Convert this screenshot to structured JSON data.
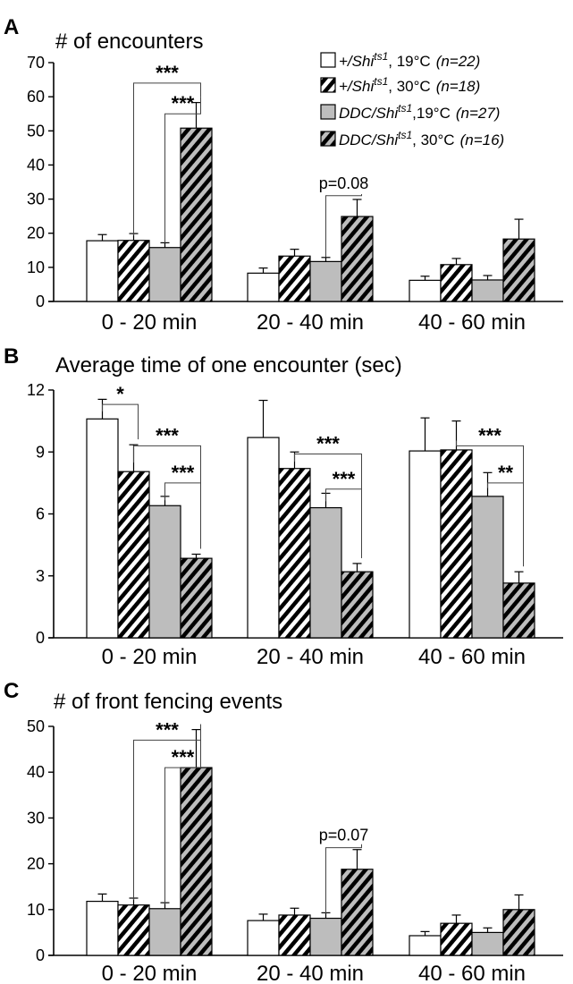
{
  "colors": {
    "white": "#ffffff",
    "gray": "#bdbdbd",
    "stroke": "#000000"
  },
  "legend": [
    {
      "genotype": "+/Shi",
      "superscript": "ts1",
      "temp": ", 19°C",
      "n": "(n=22)",
      "style": "white"
    },
    {
      "genotype": "+/Shi",
      "superscript": "ts1",
      "temp": ", 30°C",
      "n": "(n=18)",
      "style": "white-hatched"
    },
    {
      "genotype": "DDC/Shi",
      "superscript": "ts1",
      "temp": ",19°C",
      "n": "(n=27)",
      "style": "gray"
    },
    {
      "genotype": "DDC/Shi",
      "superscript": "ts1",
      "temp": ", 30°C",
      "n": "(n=16)",
      "style": "gray-hatched"
    }
  ],
  "chart_data": [
    {
      "type": "bar",
      "panel": "A",
      "title": "# of encounters",
      "categories": [
        "0 - 20 min",
        "20 - 40 min",
        "40 - 60 min"
      ],
      "ylim": [
        0,
        70
      ],
      "yticks": [
        0,
        10,
        20,
        30,
        40,
        50,
        60,
        70
      ],
      "series": [
        {
          "values": [
            17.8,
            8.3,
            6.2
          ],
          "errors": [
            1.8,
            1.5,
            1.2
          ]
        },
        {
          "values": [
            17.9,
            13.3,
            10.8
          ],
          "errors": [
            2.0,
            2.0,
            1.8
          ]
        },
        {
          "values": [
            15.8,
            11.7,
            6.3
          ],
          "errors": [
            1.4,
            1.2,
            1.3
          ]
        },
        {
          "values": [
            50.8,
            24.9,
            18.3
          ],
          "errors": [
            7.5,
            5.0,
            5.8
          ]
        }
      ],
      "annotations": [
        {
          "label": "***",
          "cat": 0,
          "from": 1,
          "to": 3,
          "y": 64
        },
        {
          "label": "***",
          "cat": 0,
          "from": 2,
          "to": 3,
          "y": 55
        },
        {
          "label": "p=0.08",
          "cat": 1,
          "from": 2,
          "to": 3,
          "y": 31
        }
      ]
    },
    {
      "type": "bar",
      "panel": "B",
      "title": "Average time of one encounter (sec)",
      "categories": [
        "0 - 20 min",
        "20 - 40 min",
        "40 - 60 min"
      ],
      "ylim": [
        0,
        12
      ],
      "yticks": [
        0,
        3,
        6,
        9,
        12
      ],
      "series": [
        {
          "values": [
            10.6,
            9.7,
            9.05
          ],
          "errors": [
            0.95,
            1.8,
            1.6
          ]
        },
        {
          "values": [
            8.05,
            8.2,
            9.1
          ],
          "errors": [
            1.3,
            0.8,
            1.4
          ]
        },
        {
          "values": [
            6.4,
            6.3,
            6.85
          ],
          "errors": [
            0.45,
            0.7,
            1.15
          ]
        },
        {
          "values": [
            3.85,
            3.2,
            2.65
          ],
          "errors": [
            0.2,
            0.4,
            0.55
          ]
        }
      ],
      "annotations": [
        {
          "label": "*",
          "cat": 0,
          "from": 0,
          "to": 1,
          "y": 11.3
        },
        {
          "label": "***",
          "cat": 0,
          "from": 1,
          "to": 3,
          "y": 9.3
        },
        {
          "label": "***",
          "cat": 0,
          "from": 2,
          "to": 3,
          "y": 7.5
        },
        {
          "label": "***",
          "cat": 1,
          "from": 1,
          "to": 3,
          "y": 8.9
        },
        {
          "label": "***",
          "cat": 1,
          "from": 2,
          "to": 3,
          "y": 7.2
        },
        {
          "label": "***",
          "cat": 2,
          "from": 1,
          "to": 3,
          "y": 9.3
        },
        {
          "label": "**",
          "cat": 2,
          "from": 2,
          "to": 3,
          "y": 7.5
        }
      ]
    },
    {
      "type": "bar",
      "panel": "C",
      "title": "# of front fencing events",
      "categories": [
        "0 - 20 min",
        "20 - 40 min",
        "40 - 60 min"
      ],
      "ylim": [
        0,
        50
      ],
      "yticks": [
        0,
        10,
        20,
        30,
        40,
        50
      ],
      "series": [
        {
          "values": [
            11.8,
            7.6,
            4.3
          ],
          "errors": [
            1.6,
            1.4,
            0.9
          ]
        },
        {
          "values": [
            11.0,
            8.8,
            7.0
          ],
          "errors": [
            1.5,
            1.5,
            1.8
          ]
        },
        {
          "values": [
            10.2,
            8.1,
            5.0
          ],
          "errors": [
            1.3,
            1.2,
            1.0
          ]
        },
        {
          "values": [
            41.0,
            18.8,
            10.0
          ],
          "errors": [
            8.3,
            4.3,
            3.2
          ]
        }
      ],
      "annotations": [
        {
          "label": "***",
          "cat": 0,
          "from": 1,
          "to": 3,
          "y": 47
        },
        {
          "label": "***",
          "cat": 0,
          "from": 2,
          "to": 3,
          "y": 41
        },
        {
          "label": "p=0.07",
          "cat": 1,
          "from": 2,
          "to": 3,
          "y": 23.5
        }
      ]
    }
  ]
}
